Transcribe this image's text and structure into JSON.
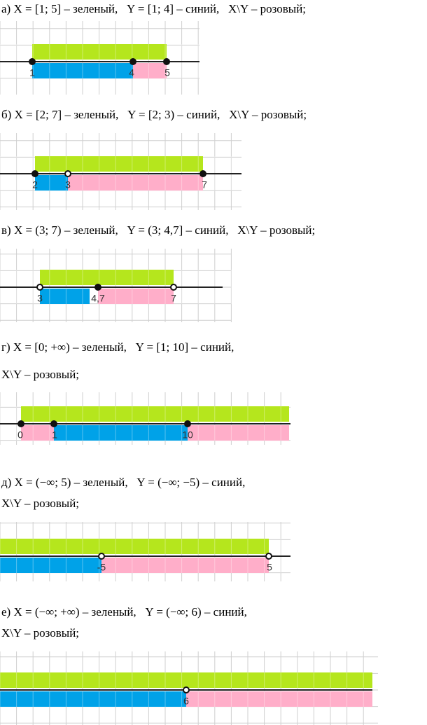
{
  "problems": [
    {
      "statement": [
        "а) X = [1; 5] – зеленый,   Y = [1; 4] – синий,   X\\Y – розовый;"
      ],
      "labels": [
        "1",
        "4",
        "5"
      ]
    },
    {
      "statement": [
        "б) X = [2; 7] – зеленый,   Y = [2; 3) – синий,   X\\Y – розовый;"
      ],
      "labels": [
        "2",
        "3",
        "7"
      ]
    },
    {
      "statement": [
        "в) X = (3; 7) – зеленый,   Y = (3; 4,7] – синий,   X\\Y – розовый;"
      ],
      "labels": [
        "3",
        "4,7",
        "7"
      ]
    },
    {
      "statement": [
        "г) X = [0; +∞) – зеленый,   Y = [1; 10] – синий,",
        "X\\Y – розовый;"
      ],
      "labels": [
        "0",
        "1",
        "10"
      ]
    },
    {
      "statement": [
        "д) X = (−∞; 5) – зеленый,   Y = (−∞; −5) – синий,",
        "X\\Y – розовый;"
      ],
      "labels": [
        "-5",
        "5"
      ]
    },
    {
      "statement": [
        "е) X = (−∞; +∞) – зеленый,   Y = (−∞; 6) – синий,",
        "X\\Y – розовый;"
      ],
      "labels": [
        "6"
      ]
    }
  ]
}
